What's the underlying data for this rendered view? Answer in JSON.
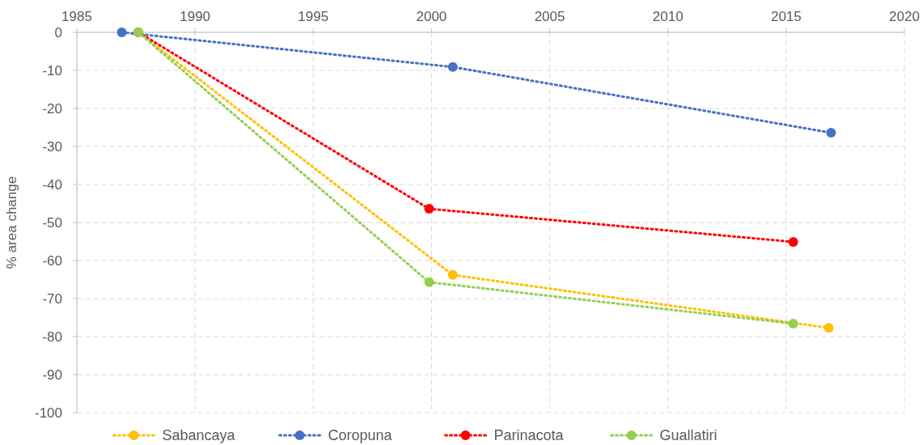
{
  "chart_data": {
    "type": "line",
    "ylabel": "% area change",
    "xlim": [
      1985,
      2020
    ],
    "xticks": [
      1985,
      1990,
      1995,
      2000,
      2005,
      2010,
      2015,
      2020
    ],
    "ylim": [
      -100,
      0
    ],
    "yticks": [
      -100,
      -90,
      -80,
      -70,
      -60,
      -50,
      -40,
      -30,
      -20,
      -10,
      0
    ],
    "grid": true,
    "legend": "bottom",
    "marker": "circle",
    "line_style": "dotted",
    "series": [
      {
        "name": "Sabancaya",
        "color": "#ffc000",
        "x": [
          1987.6,
          2000.9,
          2016.8
        ],
        "values": [
          0,
          -63.8,
          -77.7
        ]
      },
      {
        "name": "Coropuna",
        "color": "#4472c4",
        "x": [
          1986.9,
          2000.9,
          2016.9
        ],
        "values": [
          0,
          -9.1,
          -26.4
        ]
      },
      {
        "name": "Parinacota",
        "color": "#ff0000",
        "x": [
          1987.6,
          1999.9,
          2015.3
        ],
        "values": [
          0,
          -46.4,
          -55.1
        ]
      },
      {
        "name": "Guallatiri",
        "color": "#92d050",
        "x": [
          1987.6,
          1999.9,
          2015.3
        ],
        "values": [
          0,
          -65.7,
          -76.6
        ]
      }
    ]
  }
}
